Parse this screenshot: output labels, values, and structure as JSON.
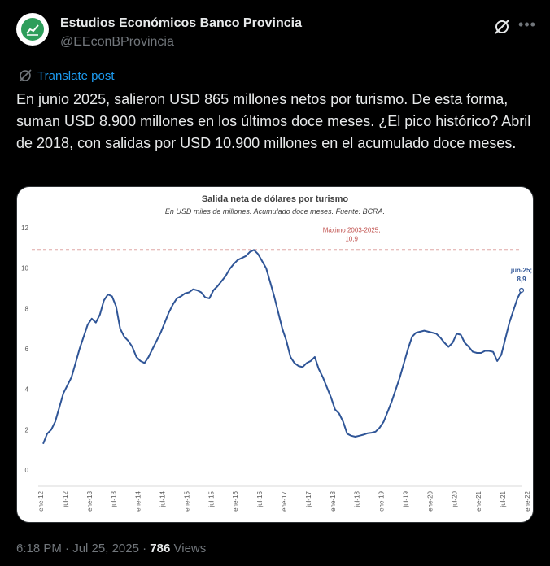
{
  "author": {
    "name": "Estudios Económicos Banco Provincia",
    "handle": "@EEconBProvincia"
  },
  "icons": {
    "avatar": "chart-logo-icon",
    "grok": "grok-icon",
    "more": "more-dots-icon",
    "translate": "translate-icon"
  },
  "translate_label": "Translate post",
  "post_text": "En junio 2025, salieron USD 865 millones netos por turismo. De esta forma, suman USD 8.900 millones en los últimos doce meses. ¿El pico histórico? Abril de 2018, con salidas por USD 10.900 millones en el acumulado doce meses.",
  "meta": {
    "time": "6:18 PM",
    "separator": "·",
    "date": "Jul 25, 2025",
    "views_count": "786",
    "views_label": "Views"
  },
  "colors": {
    "line": "#2f5597",
    "reference": "#c0504d",
    "link": "#1d9bf0",
    "avatar_green": "#2e9e5b"
  },
  "chart_data": {
    "type": "line",
    "title": "Salida neta de dólares por turismo",
    "subtitle": "En USD miles de millones. Acumulado doce meses. Fuente: BCRA.",
    "ylim": [
      0,
      12
    ],
    "yticks": [
      "0",
      "2",
      "4",
      "6",
      "8",
      "10",
      "12"
    ],
    "x_ticks": [
      "ene-12",
      "jul-12",
      "ene-13",
      "jul-13",
      "ene-14",
      "jul-14",
      "ene-15",
      "jul-15",
      "ene-16",
      "jul-16",
      "ene-17",
      "jul-17",
      "ene-18",
      "jul-18",
      "ene-19",
      "jul-19",
      "ene-20",
      "jul-20",
      "ene-21",
      "jul-21",
      "ene-22",
      "jul-22",
      "ene-23",
      "jul-23",
      "ene-24",
      "jul-24",
      "ene-25"
    ],
    "series": [
      {
        "values": [
          1.3,
          1.8,
          2.0,
          2.4,
          3.1,
          3.8,
          4.2,
          4.6,
          5.3,
          6.0,
          6.6,
          7.2,
          7.5,
          7.3,
          7.7,
          8.4,
          8.7,
          8.6,
          8.1,
          7.0,
          6.6,
          6.4,
          6.1,
          5.6,
          5.4,
          5.3,
          5.6,
          6.0,
          6.4,
          6.8,
          7.3,
          7.8,
          8.2,
          8.5,
          8.6,
          8.75,
          8.8,
          8.95,
          8.9,
          8.8,
          8.55,
          8.5,
          8.9,
          9.1,
          9.35,
          9.6,
          9.95,
          10.2,
          10.4,
          10.5,
          10.6,
          10.8,
          10.9,
          10.7,
          10.35,
          10.0,
          9.3,
          8.6,
          7.8,
          7.0,
          6.4,
          5.6,
          5.3,
          5.15,
          5.1,
          5.3,
          5.4,
          5.6,
          5.0,
          4.6,
          4.1,
          3.6,
          3.0,
          2.8,
          2.4,
          1.8,
          1.7,
          1.65,
          1.7,
          1.75,
          1.82,
          1.85,
          1.9,
          2.1,
          2.4,
          2.9,
          3.4,
          4.0,
          4.6,
          5.3,
          6.0,
          6.6,
          6.8,
          6.85,
          6.9,
          6.85,
          6.8,
          6.75,
          6.55,
          6.3,
          6.1,
          6.3,
          6.75,
          6.7,
          6.3,
          6.1,
          5.85,
          5.8,
          5.8,
          5.9,
          5.9,
          5.85,
          5.4,
          5.7,
          6.5,
          7.3,
          7.9,
          8.5,
          8.9
        ]
      }
    ],
    "reference_line": {
      "value": 10.9,
      "label": "Máximo 2003-2025;",
      "value_label": "10,9"
    },
    "end_label": {
      "label": "jun-25;",
      "value_label": "8,9"
    },
    "grid": false,
    "legend": "none"
  }
}
